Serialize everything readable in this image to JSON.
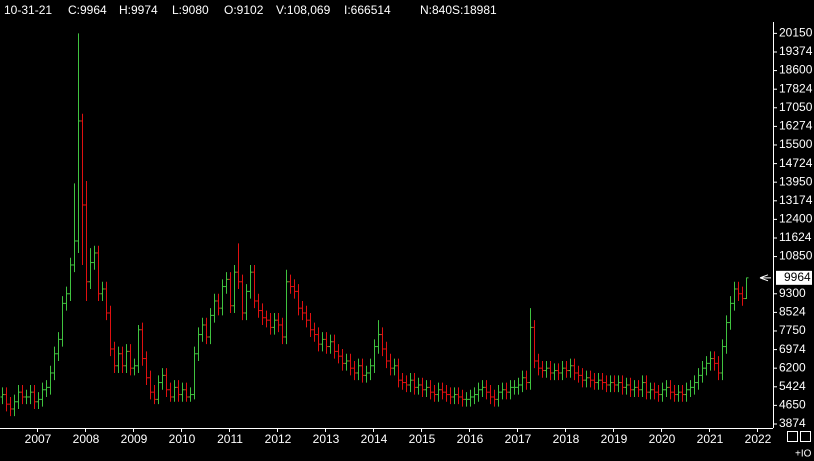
{
  "header": [
    "10-31-21",
    "C:9964",
    "H:9974",
    "L:9080",
    "O:9102",
    "V:108,069",
    "I:666514",
    "N:840",
    "S:18981"
  ],
  "chart_data": {
    "type": "ohlc",
    "categories": [
      null,
      null,
      null,
      null,
      null,
      null,
      null,
      null,
      null,
      "2007",
      null,
      null,
      null,
      null,
      null,
      null,
      null,
      null,
      null,
      null,
      null,
      "2008",
      null,
      null,
      null,
      null,
      null,
      null,
      null,
      null,
      null,
      null,
      null,
      "2009",
      null,
      null,
      null,
      null,
      null,
      null,
      null,
      null,
      null,
      null,
      null,
      "2010",
      null,
      null,
      null,
      null,
      null,
      null,
      null,
      null,
      null,
      null,
      null,
      "2011",
      null,
      null,
      null,
      null,
      null,
      null,
      null,
      null,
      null,
      null,
      null,
      "2012",
      null,
      null,
      null,
      null,
      null,
      null,
      null,
      null,
      null,
      null,
      null,
      "2013",
      null,
      null,
      null,
      null,
      null,
      null,
      null,
      null,
      null,
      null,
      null,
      "2014",
      null,
      null,
      null,
      null,
      null,
      null,
      null,
      null,
      null,
      null,
      null,
      "2015",
      null,
      null,
      null,
      null,
      null,
      null,
      null,
      null,
      null,
      null,
      null,
      "2016",
      null,
      null,
      null,
      null,
      null,
      null,
      null,
      null,
      null,
      null,
      null,
      "2017",
      null,
      null,
      null,
      null,
      null,
      null,
      null,
      null,
      null,
      null,
      null,
      "2018",
      null,
      null,
      null,
      null,
      null,
      null,
      null,
      null,
      null,
      null,
      null,
      "2019",
      null,
      null,
      null,
      null,
      null,
      null,
      null,
      null,
      null,
      null,
      null,
      "2020",
      null,
      null,
      null,
      null,
      null,
      null,
      null,
      null,
      null,
      null,
      null,
      "2021",
      null,
      null,
      null,
      null,
      null,
      null,
      null,
      null,
      null,
      null,
      null,
      "2022"
    ],
    "open": [
      5000,
      5100,
      4700,
      4500,
      4800,
      5200,
      5000,
      5000,
      5200,
      4800,
      4900,
      5300,
      5400,
      6000,
      6800,
      7400,
      8900,
      9300,
      10500,
      11500,
      16500,
      13000,
      9800,
      10600,
      11000,
      9300,
      9500,
      8500,
      7000,
      6300,
      6800,
      6300,
      6900,
      6200,
      6300,
      7800,
      6600,
      5800,
      5200,
      4900,
      5600,
      5900,
      5300,
      5000,
      5400,
      5100,
      5300,
      5000,
      5100,
      6800,
      7600,
      8000,
      7500,
      8400,
      9000,
      8700,
      9600,
      9900,
      8800,
      10200,
      9800,
      8500,
      9400,
      10200,
      9000,
      8600,
      8300,
      8200,
      7900,
      8200,
      8000,
      7500,
      9800,
      9600,
      9400,
      8700,
      8500,
      8200,
      7800,
      7600,
      7200,
      7400,
      7100,
      7300,
      6900,
      6700,
      6400,
      6500,
      6200,
      6000,
      6300,
      5900,
      6000,
      6300,
      7100,
      7600,
      7000,
      6500,
      6200,
      6300,
      5700,
      5600,
      5500,
      5700,
      5400,
      5500,
      5300,
      5400,
      5200,
      5100,
      5300,
      5200,
      5100,
      5000,
      5100,
      5000,
      4900,
      4900,
      5000,
      5100,
      5300,
      5400,
      5200,
      5000,
      4900,
      5200,
      5300,
      5200,
      5400,
      5400,
      5500,
      5800,
      5600,
      7900,
      6500,
      6200,
      6100,
      6200,
      6000,
      6100,
      6000,
      6200,
      6100,
      6300,
      6000,
      5900,
      5700,
      5800,
      5700,
      5600,
      5700,
      5600,
      5500,
      5600,
      5500,
      5600,
      5400,
      5500,
      5300,
      5400,
      5300,
      5600,
      5200,
      5300,
      5200,
      5100,
      5300,
      5400,
      5200,
      5100,
      5200,
      5100,
      5300,
      5400,
      5600,
      5900,
      6200,
      6400,
      6600,
      6400,
      6000,
      7100,
      8100,
      8900,
      9500,
      9300,
      9102,
      null,
      null,
      null
    ],
    "high": [
      5400,
      5400,
      5000,
      5100,
      5500,
      5500,
      5300,
      5500,
      5500,
      5200,
      5600,
      5700,
      6300,
      7100,
      7700,
      9200,
      9600,
      10800,
      13900,
      20150,
      16800,
      14000,
      11200,
      11300,
      11300,
      9800,
      9800,
      8800,
      7300,
      7100,
      7100,
      7200,
      7200,
      6600,
      8000,
      8100,
      6900,
      6100,
      5500,
      5900,
      6200,
      6200,
      5600,
      5700,
      5700,
      5600,
      5600,
      5400,
      7100,
      7900,
      8300,
      8300,
      8700,
      9300,
      9300,
      9900,
      10200,
      10200,
      10500,
      11400,
      10100,
      9700,
      10500,
      10500,
      9300,
      8900,
      8600,
      8500,
      8500,
      8500,
      8300,
      10300,
      10100,
      9900,
      9700,
      9000,
      8800,
      8500,
      8100,
      7900,
      7700,
      7700,
      7600,
      7600,
      7200,
      7000,
      6800,
      6800,
      6500,
      6600,
      6600,
      6300,
      6600,
      7400,
      8200,
      7900,
      7300,
      6800,
      6600,
      6600,
      6000,
      5900,
      6000,
      6000,
      5800,
      5800,
      5700,
      5700,
      5500,
      5600,
      5600,
      5500,
      5400,
      5400,
      5400,
      5300,
      5200,
      5300,
      5400,
      5600,
      5700,
      5700,
      5500,
      5300,
      5500,
      5600,
      5600,
      5700,
      5700,
      5800,
      6100,
      6100,
      8700,
      8200,
      6800,
      6500,
      6500,
      6500,
      6400,
      6400,
      6500,
      6500,
      6600,
      6600,
      6300,
      6200,
      6100,
      6100,
      6000,
      6000,
      6000,
      5900,
      5900,
      5900,
      5900,
      5900,
      5800,
      5800,
      5700,
      5700,
      5900,
      5900,
      5600,
      5600,
      5500,
      5600,
      5700,
      5700,
      5500,
      5500,
      5500,
      5600,
      5700,
      5900,
      6200,
      6500,
      6700,
      6900,
      6900,
      6700,
      7400,
      8400,
      9200,
      9800,
      9800,
      9600,
      9974,
      null,
      null,
      null
    ],
    "low": [
      4700,
      4400,
      4200,
      4200,
      4500,
      4700,
      4700,
      4700,
      4500,
      4500,
      4600,
      5000,
      5100,
      5700,
      6500,
      7100,
      8600,
      9000,
      10200,
      11000,
      10500,
      9000,
      9500,
      10300,
      9000,
      9000,
      8200,
      6700,
      6000,
      6000,
      6000,
      6000,
      5900,
      5900,
      6000,
      6300,
      5500,
      4900,
      4700,
      4700,
      5300,
      5000,
      4800,
      4800,
      4800,
      4800,
      4800,
      4800,
      4900,
      6500,
      7300,
      7200,
      7200,
      8100,
      8400,
      8400,
      9300,
      8500,
      8500,
      9500,
      8200,
      8200,
      9100,
      8700,
      8300,
      8000,
      7900,
      7600,
      7600,
      7700,
      7200,
      7200,
      9300,
      9100,
      8400,
      8200,
      7900,
      7500,
      7300,
      6900,
      6900,
      6800,
      6800,
      6600,
      6400,
      6100,
      6100,
      5900,
      5700,
      5700,
      5600,
      5600,
      5700,
      6000,
      6800,
      6700,
      6200,
      5900,
      5900,
      5400,
      5300,
      5200,
      5200,
      5100,
      5100,
      5000,
      5000,
      4900,
      4800,
      4800,
      4900,
      4800,
      4700,
      4700,
      4700,
      4600,
      4600,
      4600,
      4700,
      4800,
      5000,
      4900,
      4700,
      4600,
      4600,
      4900,
      4900,
      4900,
      5100,
      5100,
      5200,
      5300,
      5300,
      6200,
      5900,
      5800,
      5800,
      5700,
      5700,
      5700,
      5700,
      5800,
      5800,
      5700,
      5600,
      5400,
      5400,
      5400,
      5300,
      5300,
      5300,
      5200,
      5200,
      5200,
      5200,
      5100,
      5100,
      5000,
      5000,
      5000,
      5000,
      4900,
      4900,
      4900,
      4800,
      4800,
      5000,
      4900,
      4800,
      4800,
      4800,
      4800,
      5000,
      5100,
      5300,
      5600,
      5900,
      6100,
      6100,
      5700,
      5700,
      6800,
      7800,
      8600,
      9000,
      8800,
      9080,
      null,
      null,
      null
    ],
    "close": [
      5100,
      4700,
      4500,
      4800,
      5200,
      5000,
      5000,
      5200,
      4800,
      4900,
      5300,
      5400,
      6000,
      6800,
      7400,
      8900,
      9300,
      10500,
      11500,
      16500,
      13000,
      9800,
      10600,
      11000,
      9300,
      9500,
      8500,
      7000,
      6300,
      6800,
      6300,
      6900,
      6200,
      6300,
      7800,
      6600,
      5800,
      5200,
      4900,
      5600,
      5900,
      5300,
      5000,
      5400,
      5100,
      5300,
      5000,
      5100,
      6800,
      7600,
      8000,
      7500,
      8400,
      9000,
      8700,
      9600,
      9900,
      8800,
      10200,
      9800,
      8500,
      9400,
      10200,
      9000,
      8600,
      8300,
      8200,
      7900,
      8200,
      8000,
      7500,
      9800,
      9600,
      9400,
      8700,
      8500,
      8200,
      7800,
      7600,
      7200,
      7400,
      7100,
      7300,
      6900,
      6700,
      6400,
      6500,
      6200,
      6000,
      6300,
      5900,
      6000,
      6300,
      7100,
      7600,
      7000,
      6500,
      6200,
      6300,
      5700,
      5600,
      5500,
      5700,
      5400,
      5500,
      5300,
      5400,
      5200,
      5100,
      5300,
      5200,
      5100,
      5000,
      5100,
      5000,
      4900,
      4900,
      5000,
      5100,
      5300,
      5400,
      5200,
      5000,
      4900,
      5200,
      5300,
      5200,
      5400,
      5400,
      5500,
      5800,
      5600,
      7900,
      6500,
      6200,
      6100,
      6200,
      6000,
      6100,
      6000,
      6200,
      6100,
      6300,
      6000,
      5900,
      5700,
      5800,
      5700,
      5600,
      5700,
      5600,
      5500,
      5600,
      5500,
      5600,
      5400,
      5500,
      5300,
      5400,
      5300,
      5600,
      5200,
      5300,
      5200,
      5100,
      5300,
      5400,
      5200,
      5100,
      5200,
      5100,
      5300,
      5400,
      5600,
      5900,
      6200,
      6400,
      6600,
      6400,
      6000,
      7100,
      8100,
      8900,
      9500,
      9300,
      9100,
      9964,
      null,
      null,
      null
    ],
    "up_color": "#3fc23f",
    "down_color": "#e01010",
    "ylim": [
      3707,
      20624
    ],
    "yticks": [
      3874,
      4650,
      5424,
      6200,
      6974,
      7750,
      8524,
      9300,
      10850,
      11624,
      12400,
      13174,
      13950,
      14724,
      15500,
      16274,
      17050,
      17824,
      18600,
      19374,
      20150
    ],
    "last_value": 9964,
    "corner_text": "+IO"
  }
}
